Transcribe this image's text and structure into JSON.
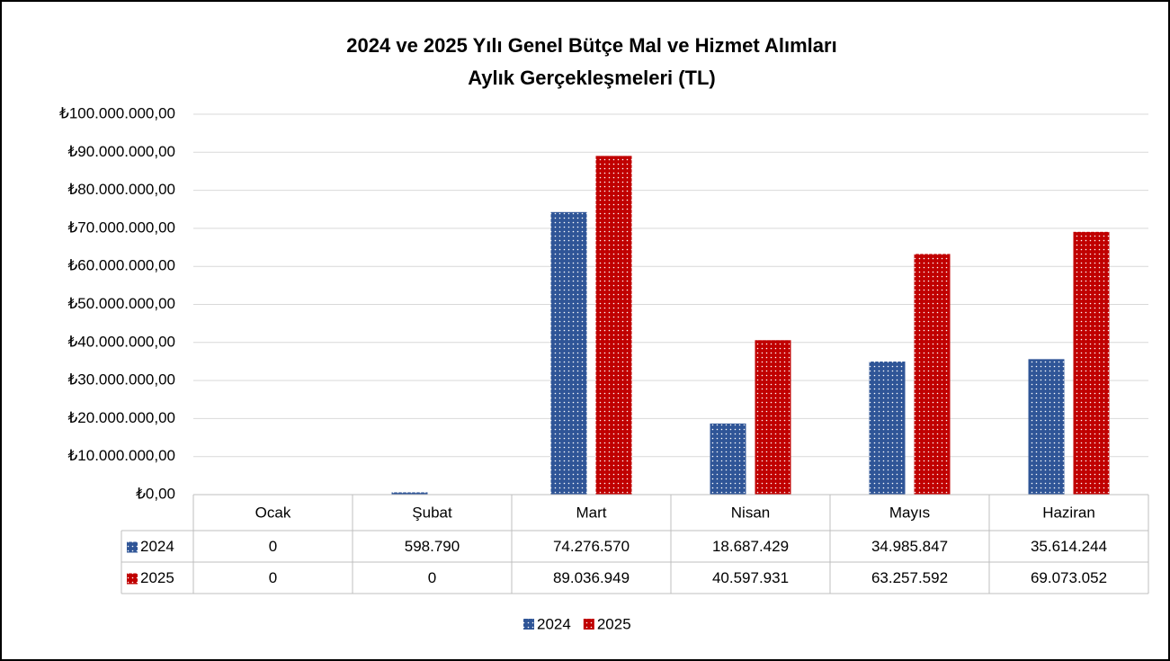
{
  "chart_data": {
    "type": "bar",
    "title": [
      "2024 ve 2025 Yılı Genel Bütçe Mal ve Hizmet Alımları",
      "Aylık Gerçekleşmeleri (TL)"
    ],
    "categories": [
      "Ocak",
      "Şubat",
      "Mart",
      "Nisan",
      "Mayıs",
      "Haziran"
    ],
    "series": [
      {
        "name": "2024",
        "color": "#2f5597",
        "values": [
          0,
          598790,
          74276570,
          18687429,
          34985847,
          35614244
        ],
        "value_labels": [
          "0",
          "598.790",
          "74.276.570",
          "18.687.429",
          "34.985.847",
          "35.614.244"
        ]
      },
      {
        "name": "2025",
        "color": "#c00000",
        "values": [
          0,
          0,
          89036949,
          40597931,
          63257592,
          69073052
        ],
        "value_labels": [
          "0",
          "0",
          "89.036.949",
          "40.597.931",
          "63.257.592",
          "69.073.052"
        ]
      }
    ],
    "ylim": [
      0,
      100000000
    ],
    "yticks": [
      {
        "value": 0,
        "label": "₺0,00"
      },
      {
        "value": 10000000,
        "label": "₺10.000.000,00"
      },
      {
        "value": 20000000,
        "label": "₺20.000.000,00"
      },
      {
        "value": 30000000,
        "label": "₺30.000.000,00"
      },
      {
        "value": 40000000,
        "label": "₺40.000.000,00"
      },
      {
        "value": 50000000,
        "label": "₺50.000.000,00"
      },
      {
        "value": 60000000,
        "label": "₺60.000.000,00"
      },
      {
        "value": 70000000,
        "label": "₺70.000.000,00"
      },
      {
        "value": 80000000,
        "label": "₺80.000.000,00"
      },
      {
        "value": 90000000,
        "label": "₺90.000.000,00"
      },
      {
        "value": 100000000,
        "label": "₺100.000.000,00"
      }
    ],
    "grid": true,
    "legend": "bottom",
    "data_table": true
  }
}
